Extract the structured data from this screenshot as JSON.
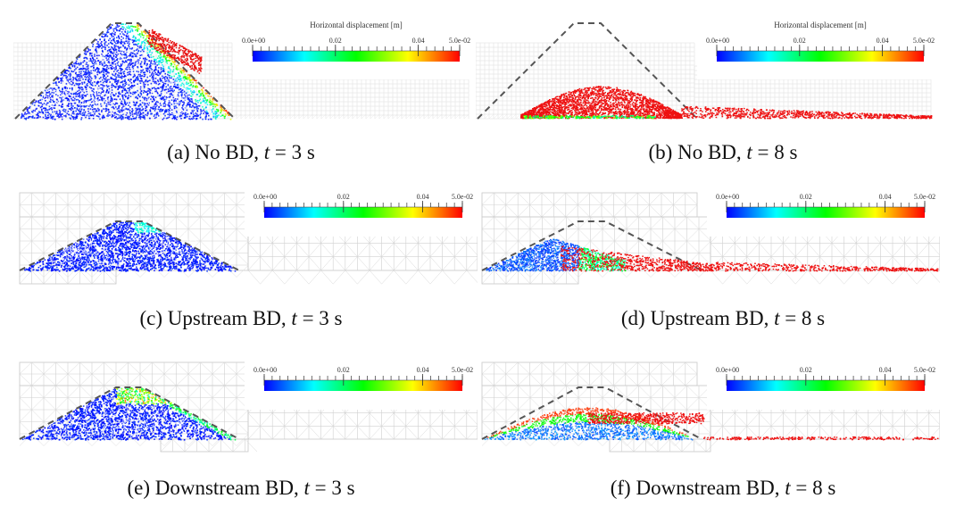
{
  "figure": {
    "colorbar": {
      "title": "Horizontal displacement [m]",
      "tick_labels": [
        "0.0e+00",
        "0.02",
        "0.04",
        "5.0e-02"
      ],
      "range": [
        0,
        0.05
      ],
      "colormap": [
        "#0000ff",
        "#00ffff",
        "#00ff00",
        "#ffff00",
        "#ff0000"
      ]
    },
    "panels": [
      {
        "id": "a",
        "label": "(a)",
        "case": "No BD",
        "time_var": "t",
        "eq": "= 3 s",
        "show_title": true,
        "mesh": "fine",
        "state": "early"
      },
      {
        "id": "b",
        "label": "(b)",
        "case": "No BD",
        "time_var": "t",
        "eq": "= 8 s",
        "show_title": true,
        "mesh": "fine",
        "state": "collapsed"
      },
      {
        "id": "c",
        "label": "(c)",
        "case": "Upstream BD",
        "time_var": "t",
        "eq": "= 3 s",
        "show_title": false,
        "mesh": "coarse",
        "state": "stable"
      },
      {
        "id": "d",
        "label": "(d)",
        "case": "Upstream BD",
        "time_var": "t",
        "eq": "= 8 s",
        "show_title": false,
        "mesh": "coarse",
        "state": "partial"
      },
      {
        "id": "e",
        "label": "(e)",
        "case": "Downstream BD",
        "time_var": "t",
        "eq": "= 3 s",
        "show_title": false,
        "mesh": "coarse",
        "state": "slight"
      },
      {
        "id": "f",
        "label": "(f)",
        "case": "Downstream BD",
        "time_var": "t",
        "eq": "= 8 s",
        "show_title": false,
        "mesh": "coarse",
        "state": "moderate"
      }
    ]
  }
}
